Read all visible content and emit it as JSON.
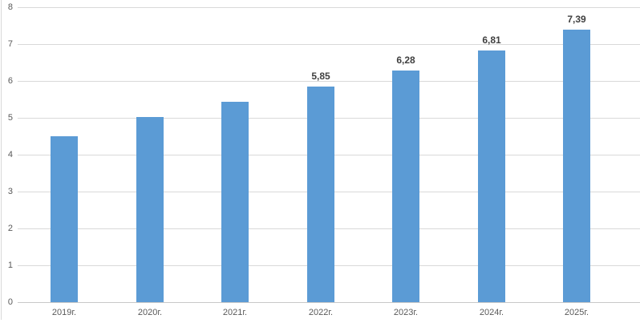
{
  "chart_data": {
    "type": "bar",
    "title": "",
    "xlabel": "",
    "ylabel": "",
    "categories": [
      "2019г.",
      "2020г.",
      "2021г.",
      "2022г.",
      "2023г.",
      "2024г.",
      "2025г."
    ],
    "values": [
      4.5,
      5.02,
      5.43,
      5.85,
      6.28,
      6.81,
      7.39
    ],
    "data_labels": [
      "",
      "",
      "",
      "5,85",
      "6,28",
      "6,81",
      "7,39"
    ],
    "ylim": [
      0,
      8
    ],
    "ytick_interval": 1,
    "ytick_labels": [
      "0",
      "1",
      "2",
      "3",
      "4",
      "5",
      "6",
      "7",
      "8"
    ],
    "grid": true,
    "legend": "none"
  },
  "colors": {
    "background": "#FFFFFF",
    "bar": "#5B9BD5",
    "gridline": "#D9D9D9",
    "axis_line": "#C8C8C8",
    "left_border": "#D9D9D9",
    "tick_label": "#595959",
    "data_label": "#404040"
  }
}
